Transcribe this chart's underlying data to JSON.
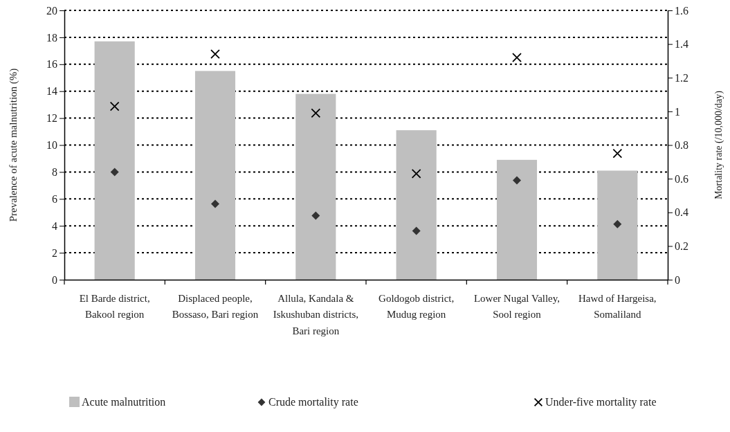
{
  "chart_data": {
    "type": "bar",
    "categories": [
      "El Barde district, Bakool region",
      "Displaced people, Bossaso, Bari region",
      "Allula, Kandala & Iskushuban districts, Bari region",
      "Goldogob district, Mudug region",
      "Lower Nugal Valley, Sool region",
      "Hawd of Hargeisa, Somaliland"
    ],
    "series": [
      {
        "name": "Acute malnutrition",
        "color": "#bfbfbf",
        "values": [
          17.7,
          15.5,
          13.8,
          11.1,
          8.9,
          8.1
        ]
      },
      {
        "name": "Crude mortality rate",
        "type": "scatter",
        "axis": "y2",
        "marker": "diamond",
        "color": "#333333",
        "values": [
          0.64,
          0.45,
          0.38,
          0.29,
          0.59,
          0.33
        ]
      },
      {
        "name": "Under-five mortality rate",
        "type": "scatter",
        "axis": "y2",
        "marker": "cross",
        "color": "#000000",
        "values": [
          1.03,
          1.34,
          0.99,
          0.63,
          1.32,
          0.75
        ]
      }
    ],
    "ylabel": "Prevalence of acute malnutrition (%)",
    "y2label": "Mortality rate (/10,000/day)",
    "ylim": [
      0,
      20
    ],
    "yticks": [
      0,
      2,
      4,
      6,
      8,
      10,
      12,
      14,
      16,
      18,
      20
    ],
    "y2lim": [
      0,
      1.6
    ],
    "y2ticks": [
      0,
      0.2,
      0.4,
      0.6,
      0.8,
      1,
      1.2,
      1.4,
      1.6
    ],
    "grid": "y",
    "legend": "bottom"
  }
}
